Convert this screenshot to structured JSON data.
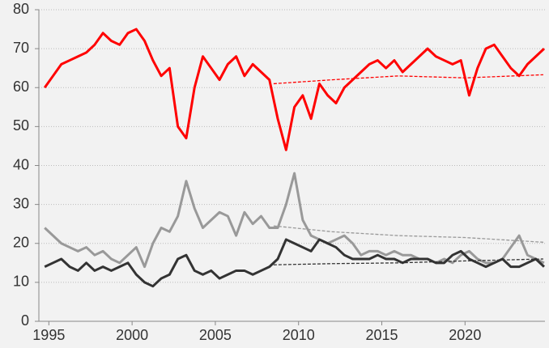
{
  "chart_data": {
    "type": "line",
    "xlim": [
      1994.4,
      2024.8
    ],
    "xticks": [
      1995,
      2000,
      2005,
      2010,
      2015,
      2020
    ],
    "ylim": [
      0,
      80
    ],
    "yticks": [
      0,
      10,
      20,
      30,
      40,
      50,
      60,
      70,
      80
    ],
    "grid": true,
    "x": [
      1994.75,
      1995.25,
      1995.75,
      1996.25,
      1996.75,
      1997.25,
      1997.75,
      1998.25,
      1998.75,
      1999.25,
      1999.75,
      2000.25,
      2000.75,
      2001.25,
      2001.75,
      2002.25,
      2002.75,
      2003.25,
      2003.75,
      2004.25,
      2004.75,
      2005.25,
      2005.75,
      2006.25,
      2006.75,
      2007.25,
      2007.75,
      2008.25,
      2008.75,
      2009.25,
      2009.75,
      2010.25,
      2010.75,
      2011.25,
      2011.75,
      2012.25,
      2012.75,
      2013.25,
      2013.75,
      2014.25,
      2014.75,
      2015.25,
      2015.75,
      2016.25,
      2016.75,
      2017.25,
      2017.75,
      2018.25,
      2018.75,
      2019.25,
      2019.75,
      2020.25,
      2020.75,
      2021.25,
      2021.75,
      2022.25,
      2022.75,
      2023.25,
      2023.75,
      2024.25,
      2024.75
    ],
    "series": [
      {
        "color": "#ff0000",
        "values": [
          60,
          63,
          66,
          67,
          68,
          69,
          71,
          74,
          72,
          71,
          74,
          75,
          72,
          67,
          63,
          65,
          50,
          47,
          60,
          68,
          65,
          62,
          66,
          68,
          63,
          66,
          64,
          62,
          52,
          44,
          55,
          58,
          52,
          61,
          58,
          56,
          60,
          62,
          64,
          66,
          67,
          65,
          67,
          64,
          66,
          68,
          70,
          68,
          67,
          66,
          67,
          58,
          65,
          70,
          71,
          68,
          65,
          63,
          66,
          68,
          70
        ]
      },
      {
        "color": "#999999",
        "values": [
          24,
          22,
          20,
          19,
          18,
          19,
          17,
          18,
          16,
          15,
          17,
          19,
          14,
          20,
          24,
          23,
          27,
          36,
          29,
          24,
          26,
          28,
          27,
          22,
          28,
          25,
          27,
          24,
          24,
          30,
          38,
          26,
          22,
          21,
          20,
          21,
          22,
          20,
          17,
          18,
          18,
          17,
          18,
          17,
          17,
          16,
          16,
          15,
          16,
          15,
          17,
          18,
          16,
          15,
          15,
          16,
          19,
          22,
          17,
          16,
          15
        ]
      },
      {
        "color": "#333333",
        "values": [
          14,
          15,
          16,
          14,
          13,
          15,
          13,
          14,
          13,
          14,
          15,
          12,
          10,
          9,
          11,
          12,
          16,
          17,
          13,
          12,
          13,
          11,
          12,
          13,
          13,
          12,
          13,
          14,
          16,
          21,
          20,
          19,
          18,
          21,
          20,
          19,
          17,
          16,
          16,
          16,
          17,
          16,
          16,
          15,
          16,
          16,
          16,
          15,
          15,
          17,
          18,
          16,
          15,
          14,
          15,
          16,
          14,
          14,
          15,
          16,
          14
        ]
      },
      {
        "color": "#ff0000",
        "dashed": true,
        "x": [
          2008.5,
          2012,
          2016,
          2020,
          2024.7
        ],
        "values": [
          61,
          62,
          63,
          62.5,
          63.3
        ]
      },
      {
        "color": "#999999",
        "dashed": true,
        "x": [
          2008.5,
          2012,
          2016,
          2020,
          2024.7
        ],
        "values": [
          24.5,
          23,
          22,
          21.5,
          20.3
        ]
      },
      {
        "color": "#333333",
        "dashed": true,
        "x": [
          2008.5,
          2012,
          2016,
          2020,
          2024.7
        ],
        "values": [
          14.5,
          14.8,
          15,
          15.5,
          16
        ]
      }
    ]
  }
}
